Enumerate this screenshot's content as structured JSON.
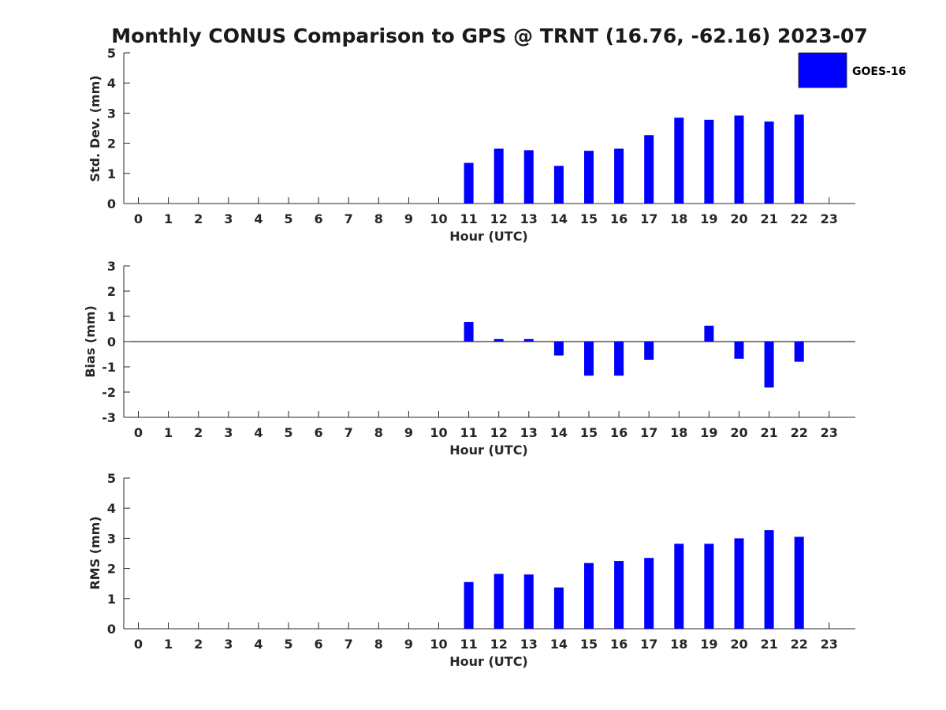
{
  "title": "Monthly CONUS Comparison to GPS @ TRNT (16.76, -62.16) 2023-07",
  "colors": {
    "bar": "#0000ff",
    "axis": "#262626"
  },
  "chart_data": [
    {
      "type": "bar",
      "xlabel": "Hour (UTC)",
      "ylabel": "Std. Dev. (mm)",
      "ylim": [
        0,
        5
      ],
      "yticks": [
        "0",
        "1",
        "2",
        "3",
        "4",
        "5"
      ],
      "categories": [
        "0",
        "1",
        "2",
        "3",
        "4",
        "5",
        "6",
        "7",
        "8",
        "9",
        "10",
        "11",
        "12",
        "13",
        "14",
        "15",
        "16",
        "17",
        "18",
        "19",
        "20",
        "21",
        "22",
        "23"
      ],
      "legend": {
        "placement": "top-right",
        "entries": [
          "GOES-16"
        ]
      },
      "series": [
        {
          "name": "GOES-16",
          "values": [
            null,
            null,
            null,
            null,
            null,
            null,
            null,
            null,
            null,
            null,
            null,
            1.35,
            1.82,
            1.77,
            1.25,
            1.75,
            1.82,
            2.27,
            2.85,
            2.78,
            2.92,
            2.72,
            2.95,
            null
          ]
        }
      ]
    },
    {
      "type": "bar",
      "xlabel": "Hour (UTC)",
      "ylabel": "Bias (mm)",
      "ylim": [
        -3,
        3
      ],
      "yticks": [
        "-3",
        "-2",
        "-1",
        "0",
        "1",
        "2",
        "3"
      ],
      "zero_line": true,
      "categories": [
        "0",
        "1",
        "2",
        "3",
        "4",
        "5",
        "6",
        "7",
        "8",
        "9",
        "10",
        "11",
        "12",
        "13",
        "14",
        "15",
        "16",
        "17",
        "18",
        "19",
        "20",
        "21",
        "22",
        "23"
      ],
      "series": [
        {
          "name": "GOES-16",
          "values": [
            null,
            null,
            null,
            null,
            null,
            null,
            null,
            null,
            null,
            null,
            null,
            0.78,
            0.1,
            0.1,
            -0.55,
            -1.35,
            -1.35,
            -0.72,
            null,
            0.63,
            -0.68,
            -1.82,
            -0.8,
            null
          ]
        }
      ]
    },
    {
      "type": "bar",
      "xlabel": "Hour (UTC)",
      "ylabel": "RMS (mm)",
      "ylim": [
        0,
        5
      ],
      "yticks": [
        "0",
        "1",
        "2",
        "3",
        "4",
        "5"
      ],
      "categories": [
        "0",
        "1",
        "2",
        "3",
        "4",
        "5",
        "6",
        "7",
        "8",
        "9",
        "10",
        "11",
        "12",
        "13",
        "14",
        "15",
        "16",
        "17",
        "18",
        "19",
        "20",
        "21",
        "22",
        "23"
      ],
      "series": [
        {
          "name": "GOES-16",
          "values": [
            null,
            null,
            null,
            null,
            null,
            null,
            null,
            null,
            null,
            null,
            null,
            1.55,
            1.82,
            1.8,
            1.37,
            2.18,
            2.25,
            2.35,
            2.82,
            2.82,
            3.0,
            3.27,
            3.05,
            null
          ]
        }
      ]
    }
  ]
}
